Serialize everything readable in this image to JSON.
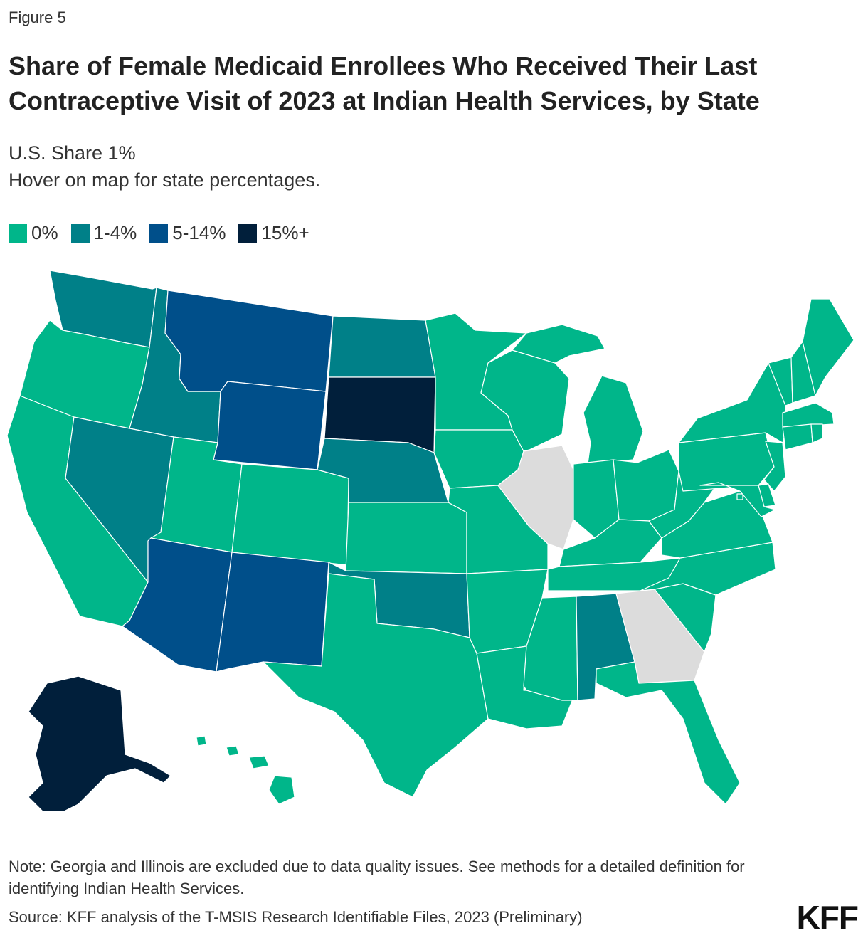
{
  "figure_label": "Figure 5",
  "title": "Share of Female Medicaid Enrollees Who Received Their Last Contraceptive Visit of 2023 at Indian Health Services, by State",
  "subtitle_line1": "U.S. Share 1%",
  "subtitle_line2": "Hover on map for state percentages.",
  "legend": [
    {
      "label": "0%",
      "color": "#00b68a"
    },
    {
      "label": "1-4%",
      "color": "#008088"
    },
    {
      "label": "5-14%",
      "color": "#004f8a"
    },
    {
      "label": "15%+",
      "color": "#011f3b"
    }
  ],
  "excluded_color": "#dcdcdc",
  "map_data": {
    "categories": [
      "0%",
      "1-4%",
      "5-14%",
      "15%+"
    ],
    "states": [
      {
        "state": "WA",
        "category": "1-4%"
      },
      {
        "state": "OR",
        "category": "0%"
      },
      {
        "state": "CA",
        "category": "0%"
      },
      {
        "state": "ID",
        "category": "1-4%"
      },
      {
        "state": "NV",
        "category": "1-4%"
      },
      {
        "state": "MT",
        "category": "5-14%"
      },
      {
        "state": "WY",
        "category": "5-14%"
      },
      {
        "state": "UT",
        "category": "0%"
      },
      {
        "state": "AZ",
        "category": "5-14%"
      },
      {
        "state": "CO",
        "category": "0%"
      },
      {
        "state": "NM",
        "category": "5-14%"
      },
      {
        "state": "ND",
        "category": "1-4%"
      },
      {
        "state": "SD",
        "category": "15%+"
      },
      {
        "state": "NE",
        "category": "1-4%"
      },
      {
        "state": "KS",
        "category": "0%"
      },
      {
        "state": "OK",
        "category": "1-4%"
      },
      {
        "state": "TX",
        "category": "0%"
      },
      {
        "state": "MN",
        "category": "0%"
      },
      {
        "state": "IA",
        "category": "0%"
      },
      {
        "state": "MO",
        "category": "0%"
      },
      {
        "state": "AR",
        "category": "0%"
      },
      {
        "state": "LA",
        "category": "0%"
      },
      {
        "state": "WI",
        "category": "0%"
      },
      {
        "state": "IL",
        "category": "excluded"
      },
      {
        "state": "MI",
        "category": "0%"
      },
      {
        "state": "IN",
        "category": "0%"
      },
      {
        "state": "OH",
        "category": "0%"
      },
      {
        "state": "KY",
        "category": "0%"
      },
      {
        "state": "TN",
        "category": "0%"
      },
      {
        "state": "MS",
        "category": "0%"
      },
      {
        "state": "AL",
        "category": "1-4%"
      },
      {
        "state": "GA",
        "category": "excluded"
      },
      {
        "state": "FL",
        "category": "0%"
      },
      {
        "state": "SC",
        "category": "0%"
      },
      {
        "state": "NC",
        "category": "0%"
      },
      {
        "state": "VA",
        "category": "0%"
      },
      {
        "state": "WV",
        "category": "0%"
      },
      {
        "state": "PA",
        "category": "0%"
      },
      {
        "state": "NY",
        "category": "0%"
      },
      {
        "state": "VT",
        "category": "0%"
      },
      {
        "state": "NH",
        "category": "0%"
      },
      {
        "state": "ME",
        "category": "0%"
      },
      {
        "state": "MA",
        "category": "0%"
      },
      {
        "state": "CT",
        "category": "0%"
      },
      {
        "state": "RI",
        "category": "0%"
      },
      {
        "state": "NJ",
        "category": "0%"
      },
      {
        "state": "DE",
        "category": "0%"
      },
      {
        "state": "MD",
        "category": "0%"
      },
      {
        "state": "DC",
        "category": "0%"
      },
      {
        "state": "AK",
        "category": "15%+"
      },
      {
        "state": "HI",
        "category": "0%"
      }
    ]
  },
  "note": "Note: Georgia and Illinois are excluded due to data quality issues. See methods for a detailed definition for identifying Indian Health Services.",
  "source": "Source: KFF analysis of the T-MSIS Research Identifiable Files, 2023 (Preliminary)",
  "logo": "KFF"
}
